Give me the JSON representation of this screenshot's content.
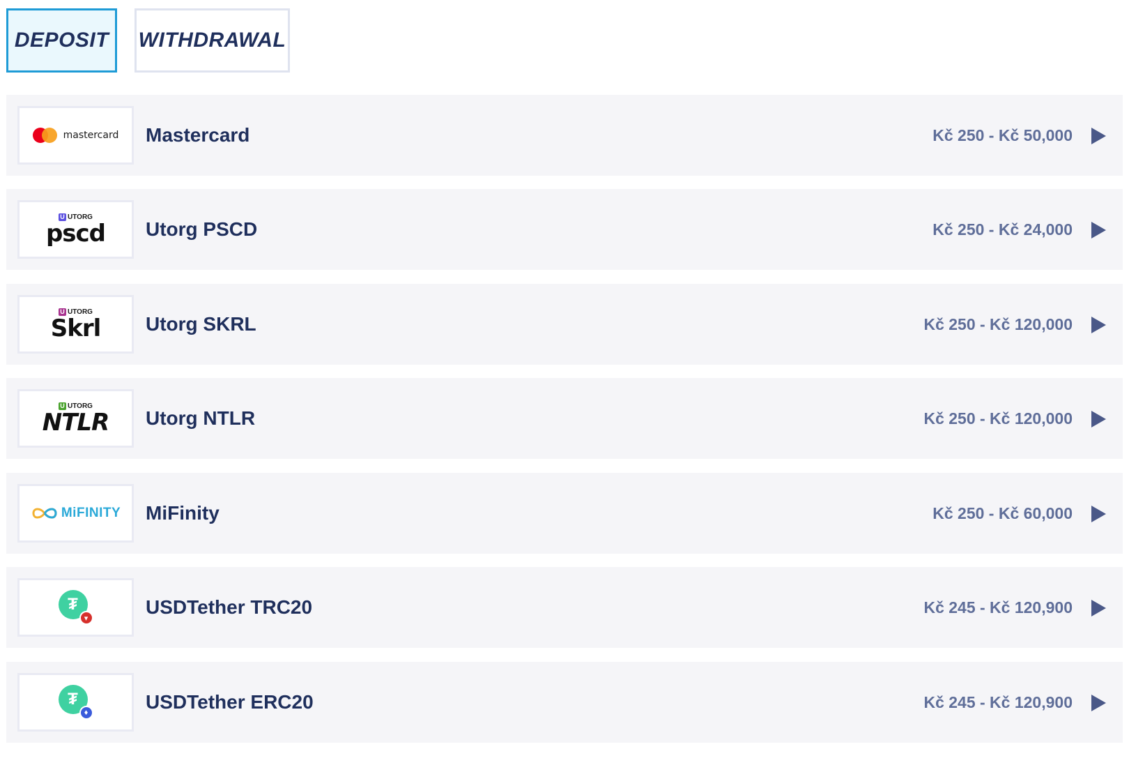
{
  "tabs": [
    {
      "label": "DEPOSIT",
      "active": true
    },
    {
      "label": "WITHDRAWAL",
      "active": false
    }
  ],
  "colors": {
    "active_tab_border": "#1e9bd6",
    "active_tab_bg": "#eaf8fd",
    "title_text": "#1f2f5c",
    "range_text": "#5f6e99",
    "row_bg": "#f5f5f8",
    "arrow": "#4a5888"
  },
  "methods": [
    {
      "name": "Mastercard",
      "range": "Kč 250 - Kč 50,000",
      "logo": {
        "icon": "mastercard-logo",
        "text": "mastercard"
      }
    },
    {
      "name": "Utorg PSCD",
      "range": "Kč 250 - Kč 24,000",
      "logo": {
        "icon": "utorg-pscd-logo",
        "top": "UTORG",
        "main": "pscd",
        "badge_color": "#5b4fe0"
      }
    },
    {
      "name": "Utorg SKRL",
      "range": "Kč 250 - Kč 120,000",
      "logo": {
        "icon": "utorg-skrl-logo",
        "top": "UTORG",
        "main": "Skrl",
        "badge_color": "#a8338f"
      }
    },
    {
      "name": "Utorg NTLR",
      "range": "Kč 250 - Kč 120,000",
      "logo": {
        "icon": "utorg-ntlr-logo",
        "top": "UTORG",
        "main": "NTLR",
        "badge_color": "#4aa32e"
      }
    },
    {
      "name": "MiFinity",
      "range": "Kč 250 - Kč 60,000",
      "logo": {
        "icon": "mifinity-logo",
        "text": "MiFINITY"
      }
    },
    {
      "name": "USDTether TRC20",
      "range": "Kč 245 - Kč 120,900",
      "logo": {
        "icon": "tether-trc20-logo",
        "network_color": "#d6302b"
      }
    },
    {
      "name": "USDTether ERC20",
      "range": "Kč 245 - Kč 120,900",
      "logo": {
        "icon": "tether-erc20-logo",
        "network_color": "#3b5bdb"
      }
    }
  ]
}
